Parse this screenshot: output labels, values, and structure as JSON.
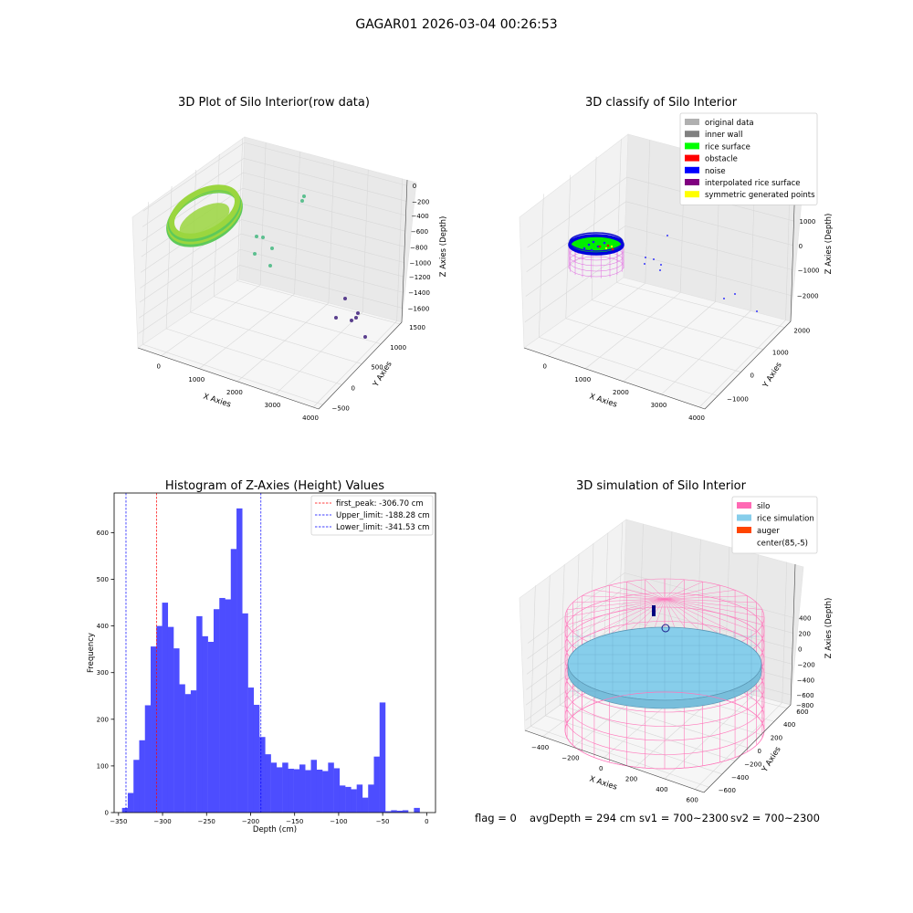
{
  "suptitle": "GAGAR01 2026-03-04 00:26:53",
  "footer": {
    "flag": "flag = 0",
    "avg_depth": "avgDepth = 294 cm",
    "sv1": "sv1 = 700~2300",
    "sv2": "sv2 = 700~2300"
  },
  "chart_data": [
    {
      "type": "scatter",
      "title": "3D Plot of Silo Interior(row data)",
      "xlabel": "X Axies",
      "ylabel": "Y Axies",
      "zlabel": "Z Axies (Depth)",
      "x_ticks": [
        "0",
        "1000",
        "2000",
        "3000",
        "4000"
      ],
      "y_ticks": [
        "−500",
        "0",
        "500",
        "1000",
        "1500"
      ],
      "z_ticks": [
        "0",
        "−200",
        "−400",
        "−600",
        "−800",
        "−1000",
        "−1200",
        "−1400",
        "−1600"
      ],
      "colormap": "viridis",
      "colors": {
        "ring": "#9bd63f",
        "ring_inner": "#5ec95a",
        "outliers_mid": "#5cbf8f",
        "outliers_low": "#5a3f8e"
      }
    },
    {
      "type": "scatter",
      "title": "3D classify of Silo Interior",
      "x_ticks": [
        "0",
        "1000",
        "2000",
        "3000",
        "4000"
      ],
      "y_ticks": [
        "−1000",
        "0",
        "1000",
        "2000"
      ],
      "z_ticks": [
        "1000",
        "0",
        "−1000",
        "−2000"
      ],
      "xlabel": "X Axies",
      "ylabel": "Y Axies",
      "zlabel": "Z Axies (Depth)",
      "legend_position": "top-right",
      "legend": [
        {
          "label": "original data",
          "color": "#b0b0b0"
        },
        {
          "label": "inner wall",
          "color": "#808080"
        },
        {
          "label": "rice surface",
          "color": "#00ff00"
        },
        {
          "label": "obstacle",
          "color": "#ff0000"
        },
        {
          "label": "noise",
          "color": "#0000ff"
        },
        {
          "label": "interpolated rice surface",
          "color": "#800080"
        },
        {
          "label": "symmetric generated points",
          "color": "#ffff00"
        }
      ]
    },
    {
      "type": "bar",
      "title": "Histogram of Z-Axies (Height) Values",
      "xlabel": "Depth (cm)",
      "ylabel": "Frequency",
      "xlim": [
        -355,
        10
      ],
      "ylim": [
        0,
        685
      ],
      "x_ticks": [
        -350,
        -300,
        -250,
        -200,
        -150,
        -100,
        -50,
        0
      ],
      "y_ticks": [
        0,
        100,
        200,
        300,
        400,
        500,
        600
      ],
      "bar_color": "#4d4dff",
      "bin_width": 6.5,
      "bin_start": -346,
      "values": [
        10,
        42,
        113,
        155,
        230,
        356,
        400,
        450,
        398,
        352,
        275,
        254,
        262,
        421,
        378,
        366,
        436,
        460,
        457,
        565,
        652,
        427,
        268,
        231,
        162,
        125,
        107,
        97,
        107,
        94,
        93,
        103,
        91,
        113,
        92,
        89,
        107,
        95,
        58,
        55,
        50,
        60,
        32,
        60,
        120,
        236,
        3,
        5,
        4,
        5,
        0,
        10
      ],
      "legend_position": "top-right",
      "vlines": [
        {
          "label": "first_peak: -306.70 cm",
          "x": -306.7,
          "color": "#ff0000"
        },
        {
          "label": "Upper_limit: -188.28 cm",
          "x": -188.28,
          "color": "#0000ff"
        },
        {
          "label": "Lower_limit: -341.53 cm",
          "x": -341.53,
          "color": "#0000ff"
        }
      ]
    },
    {
      "type": "scatter",
      "title": "3D simulation of Silo Interior",
      "xlabel": "X Axies",
      "ylabel": "Y Axies",
      "zlabel": "Z Axies (Depth)",
      "x_ticks": [
        "−400",
        "−200",
        "0",
        "200",
        "400",
        "600"
      ],
      "y_ticks": [
        "−600",
        "−400",
        "−200",
        "0",
        "200",
        "400",
        "600"
      ],
      "z_ticks": [
        "400",
        "200",
        "0",
        "−200",
        "−400",
        "−600",
        "−800"
      ],
      "legend_position": "top-right",
      "legend": [
        {
          "label": "silo",
          "color": "#ff69b4"
        },
        {
          "label": "rice simulation",
          "color": "#87ceeb"
        },
        {
          "label": "auger",
          "color": "#ff4500"
        },
        {
          "label": "center(85,-5)",
          "color": ""
        }
      ]
    }
  ]
}
